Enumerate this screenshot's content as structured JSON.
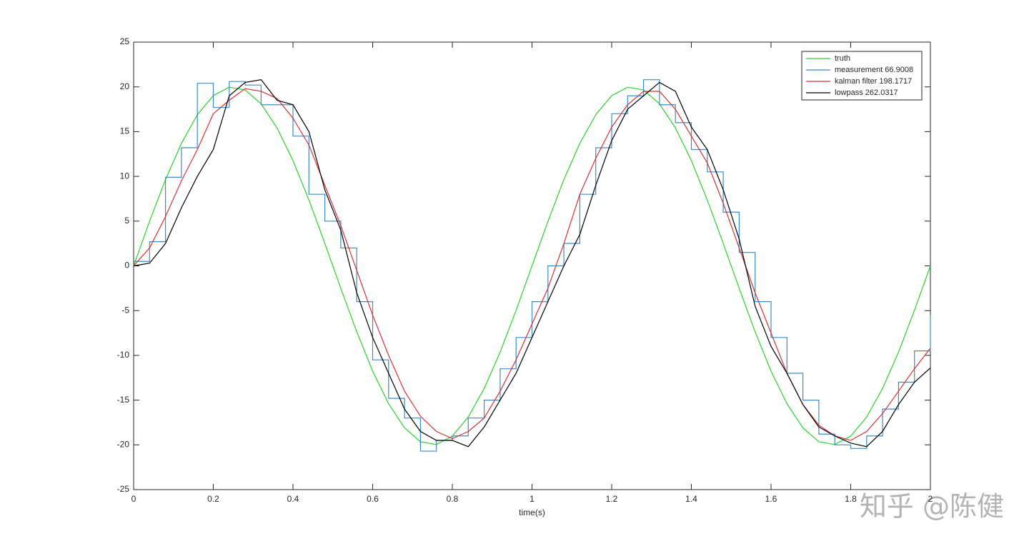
{
  "chart_data": {
    "type": "line",
    "xlabel": "time(s)",
    "watermark": "知乎 @陈健",
    "x": [
      0,
      0.04,
      0.08,
      0.12,
      0.16,
      0.2,
      0.24,
      0.28,
      0.32,
      0.36,
      0.4,
      0.44,
      0.48,
      0.52,
      0.56,
      0.6,
      0.64,
      0.68,
      0.72,
      0.76,
      0.8,
      0.84,
      0.88,
      0.92,
      0.96,
      1,
      1.04,
      1.08,
      1.12,
      1.16,
      1.2,
      1.24,
      1.28,
      1.32,
      1.36,
      1.4,
      1.44,
      1.48,
      1.52,
      1.56,
      1.6,
      1.64,
      1.68,
      1.72,
      1.76,
      1.8,
      1.84,
      1.88,
      1.92,
      1.96,
      2
    ],
    "series": [
      {
        "name": "truth",
        "color": "#2ad12a",
        "values": [
          0,
          4.97,
          9.64,
          13.69,
          16.89,
          19.02,
          19.96,
          19.65,
          18.1,
          15.41,
          11.76,
          7.36,
          2.51,
          -2.51,
          -7.36,
          -11.76,
          -15.41,
          -18.1,
          -19.65,
          -19.96,
          -19.02,
          -16.89,
          -13.69,
          -9.64,
          -4.97,
          0,
          4.97,
          9.64,
          13.69,
          16.89,
          19.02,
          19.96,
          19.65,
          18.1,
          15.41,
          11.76,
          7.36,
          2.51,
          -2.51,
          -7.36,
          -11.76,
          -15.41,
          -18.1,
          -19.65,
          -19.96,
          -19.02,
          -16.89,
          -13.69,
          -9.64,
          -4.97,
          0
        ]
      },
      {
        "name": "measurement 66.9008",
        "color": "#3d8cc4",
        "step": true,
        "values": [
          0.5,
          2.7,
          9.9,
          13.2,
          20.4,
          17.7,
          20.6,
          20.2,
          18,
          18,
          14.5,
          8,
          5,
          2,
          -4,
          -10.5,
          -14.8,
          -17,
          -20.7,
          -19.5,
          -19,
          -17,
          -15,
          -11.5,
          -8,
          -4,
          0,
          2.5,
          8,
          13.2,
          17,
          19,
          20.8,
          18,
          16,
          13,
          10.5,
          6,
          1.5,
          -4,
          -8,
          -12,
          -15,
          -18.8,
          -20,
          -20.4,
          -19,
          -16,
          -13,
          -9.5,
          -5.5
        ]
      },
      {
        "name": "kalman filter 198.1717",
        "color": "#d23232",
        "values": [
          0,
          2,
          5.5,
          9.5,
          13,
          17,
          18.5,
          19.8,
          19.5,
          18.7,
          16.5,
          13.5,
          9,
          4.5,
          -0.5,
          -5.5,
          -10,
          -14,
          -16.8,
          -18.5,
          -19.3,
          -18.5,
          -17,
          -14,
          -10.5,
          -6.5,
          -2.5,
          2.5,
          8,
          12,
          15.5,
          18,
          19.5,
          19.5,
          17.5,
          14.5,
          11.5,
          7,
          2,
          -3,
          -7.5,
          -12,
          -15.5,
          -17.8,
          -19,
          -19.5,
          -18.5,
          -16.5,
          -14,
          -11.5,
          -9.2
        ]
      },
      {
        "name": "lowpass 262.0317",
        "color": "#000000",
        "values": [
          0,
          0.3,
          2.5,
          6.5,
          10,
          13,
          19,
          20.5,
          20.8,
          18.5,
          18,
          15,
          8.5,
          4,
          -3,
          -8,
          -12,
          -16,
          -18.5,
          -19.5,
          -19.5,
          -20.2,
          -18,
          -15,
          -12,
          -8,
          -4,
          0,
          3.5,
          9,
          14,
          17.5,
          19,
          20.5,
          19.5,
          15.5,
          13,
          8.5,
          3,
          -4.5,
          -9,
          -12,
          -15.5,
          -18,
          -19,
          -19.8,
          -20.2,
          -18.5,
          -15.5,
          -13,
          -11.4
        ]
      }
    ],
    "xlim": [
      0,
      2
    ],
    "ylim": [
      -25,
      25
    ],
    "xticks": [
      0,
      0.2,
      0.4,
      0.6,
      0.8,
      1,
      1.2,
      1.4,
      1.6,
      1.8,
      2
    ],
    "yticks": [
      -25,
      -20,
      -15,
      -10,
      -5,
      0,
      5,
      10,
      15,
      20,
      25
    ],
    "legend": "upper right"
  }
}
